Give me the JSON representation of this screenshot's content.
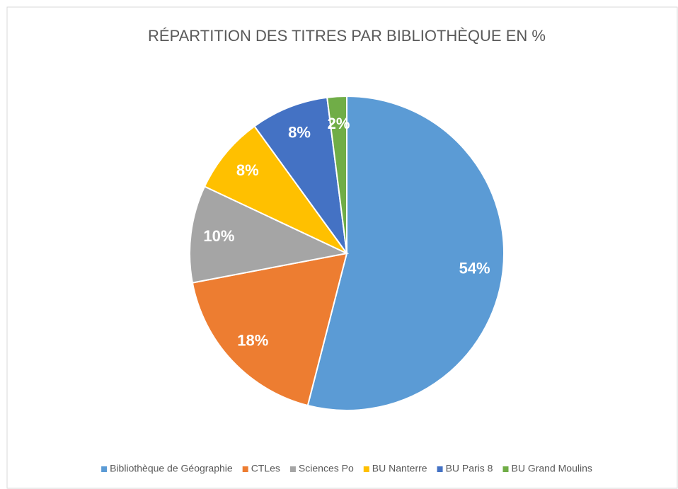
{
  "chart_data": {
    "type": "pie",
    "title": "RÉPARTITION DES TITRES PAR BIBLIOTHÈQUE EN %",
    "categories": [
      "Bibliothèque de Géographie",
      "CTLes",
      "Sciences Po",
      "BU Nanterre",
      "BU Paris 8",
      "BU Grand Moulins"
    ],
    "values": [
      54,
      18,
      10,
      8,
      8,
      2
    ],
    "value_labels": [
      "54%",
      "18%",
      "10%",
      "8%",
      "8%",
      "2%"
    ],
    "colors": [
      "#5b9bd5",
      "#ed7d31",
      "#a5a5a5",
      "#ffc000",
      "#4472c4",
      "#70ad47"
    ],
    "legend": "bottom"
  }
}
